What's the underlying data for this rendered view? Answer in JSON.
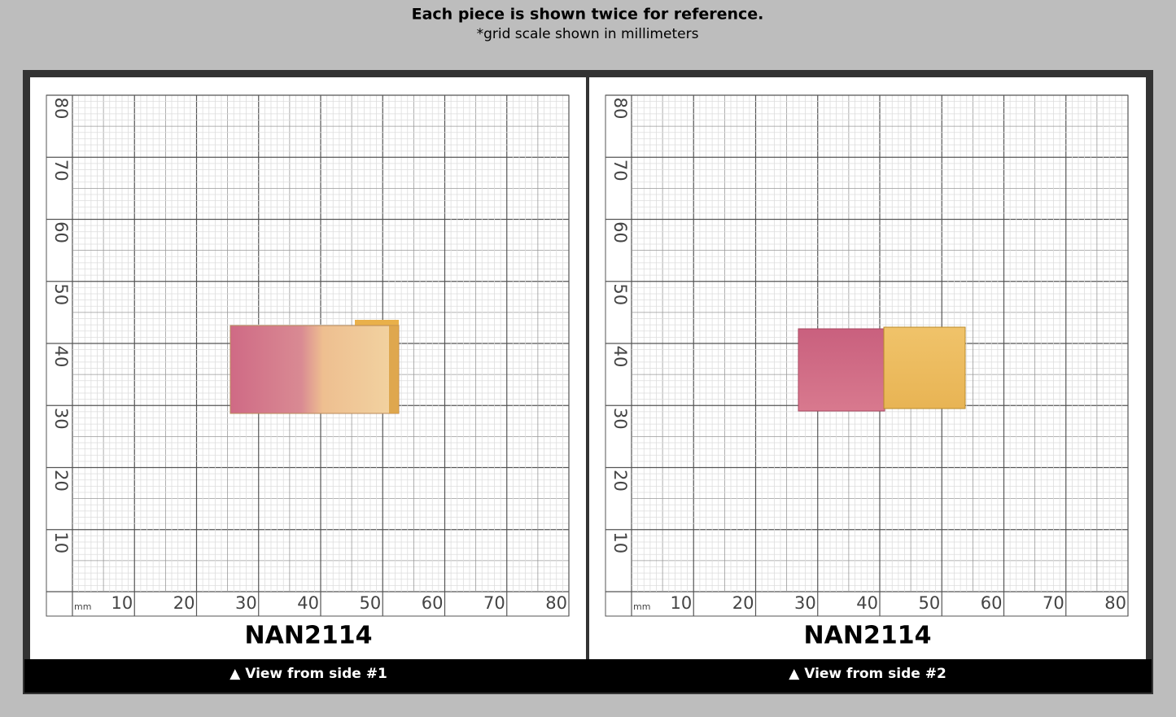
{
  "header": {
    "title": "Each piece is shown twice for reference.",
    "subtitle": "*grid scale shown in millimeters"
  },
  "panels": [
    {
      "unit": "mm",
      "x_ticks": [
        10,
        20,
        30,
        40,
        50,
        60,
        70,
        80
      ],
      "y_ticks": [
        10,
        20,
        30,
        40,
        50,
        60,
        70,
        80
      ],
      "label": "NAN2114",
      "caption": "▲ View from side #1"
    },
    {
      "unit": "mm",
      "x_ticks": [
        10,
        20,
        30,
        40,
        50,
        60,
        70,
        80
      ],
      "y_ticks": [
        10,
        20,
        30,
        40,
        50,
        60,
        70,
        80
      ],
      "label": "NAN2114",
      "caption": "▲ View from side #2"
    }
  ]
}
